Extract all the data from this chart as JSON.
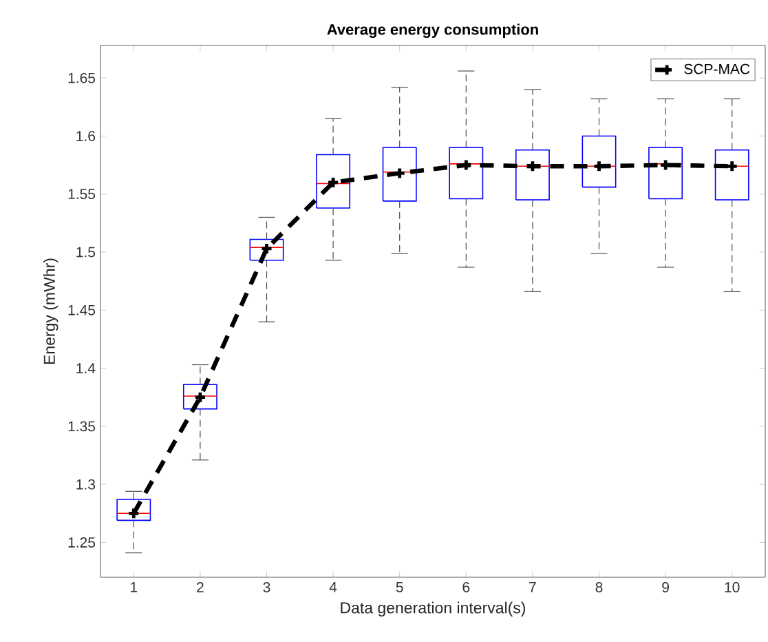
{
  "chart_data": {
    "type": "box",
    "title": "Average energy consumption",
    "xlabel": "Data generation interval(s)",
    "ylabel": "Energy (mWhr)",
    "categories": [
      "1",
      "2",
      "3",
      "4",
      "5",
      "6",
      "7",
      "8",
      "9",
      "10"
    ],
    "color": "#0000ff",
    "boxes": [
      {
        "low": 1.241,
        "q1": 1.269,
        "median": 1.275,
        "q3": 1.287,
        "high": 1.294
      },
      {
        "low": 1.321,
        "q1": 1.365,
        "median": 1.376,
        "q3": 1.386,
        "high": 1.403
      },
      {
        "low": 1.44,
        "q1": 1.493,
        "median": 1.504,
        "q3": 1.511,
        "high": 1.53
      },
      {
        "low": 1.493,
        "q1": 1.538,
        "median": 1.559,
        "q3": 1.584,
        "high": 1.615
      },
      {
        "low": 1.499,
        "q1": 1.544,
        "median": 1.569,
        "q3": 1.59,
        "high": 1.642
      },
      {
        "low": 1.487,
        "q1": 1.546,
        "median": 1.576,
        "q3": 1.59,
        "high": 1.656
      },
      {
        "low": 1.466,
        "q1": 1.545,
        "median": 1.574,
        "q3": 1.588,
        "high": 1.64
      },
      {
        "low": 1.499,
        "q1": 1.556,
        "median": 1.574,
        "q3": 1.6,
        "high": 1.632
      },
      {
        "low": 1.487,
        "q1": 1.546,
        "median": 1.576,
        "q3": 1.59,
        "high": 1.632
      },
      {
        "low": 1.466,
        "q1": 1.545,
        "median": 1.574,
        "q3": 1.588,
        "high": 1.632
      }
    ],
    "series": [
      {
        "name": "SCP-MAC",
        "type": "line",
        "color": "#000000",
        "x": [
          "1",
          "2",
          "3",
          "4",
          "5",
          "6",
          "7",
          "8",
          "9",
          "10"
        ],
        "values": [
          1.275,
          1.375,
          1.503,
          1.56,
          1.568,
          1.575,
          1.574,
          1.574,
          1.575,
          1.574
        ]
      }
    ],
    "marker": "cross",
    "line_style": "dashed",
    "legend": "top right",
    "ylim": [
      1.22,
      1.678
    ],
    "yticks": [
      1.25,
      1.3,
      1.35,
      1.4,
      1.45,
      1.5,
      1.55,
      1.6,
      1.65
    ]
  }
}
